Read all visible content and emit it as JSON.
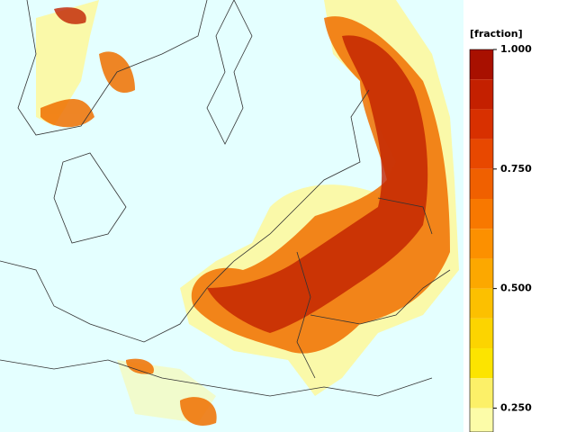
{
  "colorbar": {
    "title": "[fraction]",
    "lim": [
      0.2,
      1.0
    ],
    "ticks": [
      {
        "value": 1.0,
        "label": "1.000"
      },
      {
        "value": 0.75,
        "label": "0.750"
      },
      {
        "value": 0.5,
        "label": "0.500"
      },
      {
        "value": 0.25,
        "label": "0.250"
      }
    ],
    "colors": [
      "#a81000",
      "#c42000",
      "#d83000",
      "#e84800",
      "#f06000",
      "#f87800",
      "#fc9000",
      "#fca800",
      "#fcc000",
      "#fcd400",
      "#fce400",
      "#fcf068",
      "#fcfca8"
    ]
  }
}
